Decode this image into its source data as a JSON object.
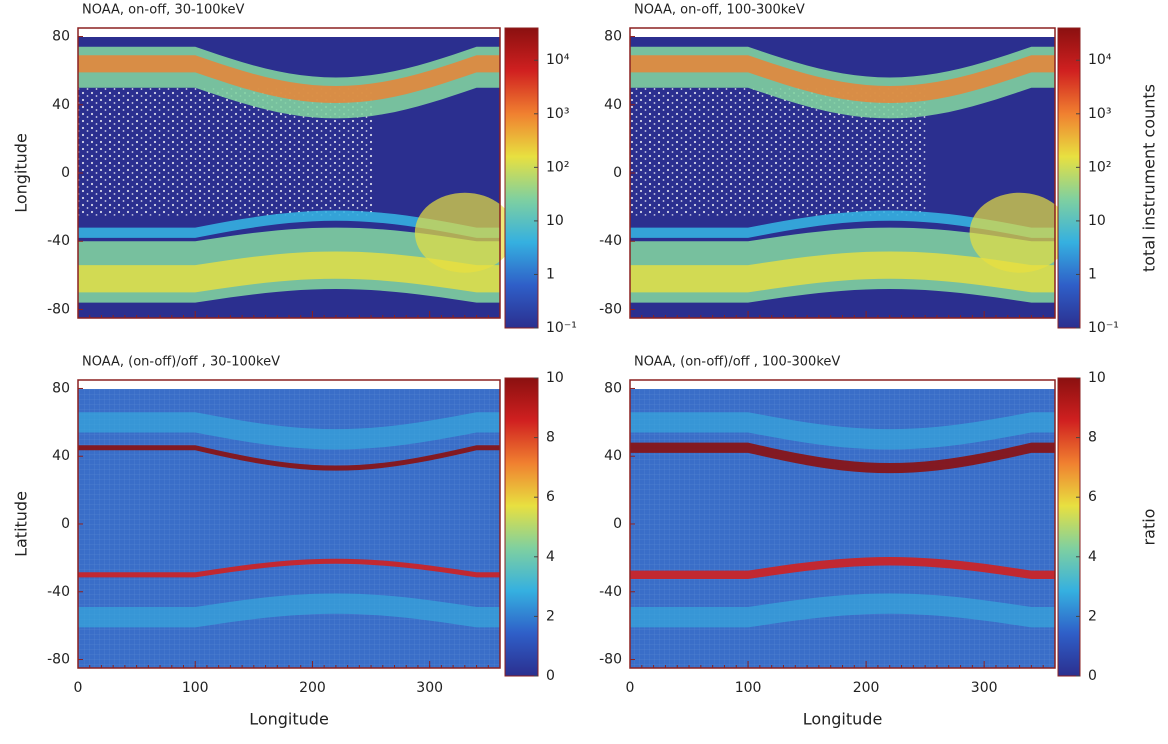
{
  "chart_data": [
    {
      "type": "heatmap",
      "title": "NOAA, on-off, 30-100keV",
      "ylabel": "Longitude",
      "xlim": [
        0,
        360
      ],
      "xticks": [
        0,
        100,
        200,
        300
      ],
      "ylim": [
        -85,
        85
      ],
      "yticks": [
        80,
        40,
        0,
        -40,
        -80
      ],
      "colormap": [
        "#2b2f8f",
        "#2f5fc8",
        "#35b0e0",
        "#7fd0a0",
        "#e8e040",
        "#f08030",
        "#d02020",
        "#8b1010"
      ],
      "colorbar": {
        "log": true,
        "lim": [
          0.1,
          40000
        ],
        "ticks": [
          {
            "value": 0.1,
            "label": "10⁻¹"
          },
          1,
          10,
          {
            "value": 100,
            "label": "10²"
          },
          {
            "value": 1000,
            "label": "10³"
          },
          {
            "value": 10000,
            "label": "10⁴"
          }
        ]
      }
    },
    {
      "type": "heatmap",
      "title": "NOAA, on-off, 100-300keV",
      "xlim": [
        0,
        360
      ],
      "xticks": [
        0,
        100,
        200,
        300
      ],
      "ylim": [
        -85,
        85
      ],
      "yticks": [
        80,
        40,
        0,
        -40,
        -80
      ],
      "colormap": [
        "#2b2f8f",
        "#2f5fc8",
        "#35b0e0",
        "#7fd0a0",
        "#e8e040",
        "#f08030",
        "#d02020",
        "#8b1010"
      ],
      "colorbar": {
        "log": true,
        "lim": [
          0.1,
          40000
        ],
        "label": "total instrument counts",
        "ticks": [
          {
            "value": 0.1,
            "label": "10⁻¹"
          },
          1,
          10,
          {
            "value": 100,
            "label": "10²"
          },
          {
            "value": 1000,
            "label": "10³"
          },
          {
            "value": 10000,
            "label": "10⁴"
          }
        ]
      }
    },
    {
      "type": "heatmap",
      "title": "NOAA, (on-off)/off , 30-100keV",
      "ylabel": "Latitude",
      "xlabel": "Longitude",
      "xlim": [
        0,
        360
      ],
      "xticks": [
        0,
        100,
        200,
        300
      ],
      "ylim": [
        -85,
        85
      ],
      "yticks": [
        80,
        40,
        0,
        -40,
        -80
      ],
      "colormap": [
        "#2b2f8f",
        "#2f5fc8",
        "#35b0e0",
        "#7fd0a0",
        "#e8e040",
        "#f08030",
        "#d02020",
        "#8b1010"
      ],
      "colorbar": {
        "log": false,
        "lim": [
          0,
          10
        ],
        "ticks": [
          10,
          8,
          6,
          4,
          2,
          0
        ]
      }
    },
    {
      "type": "heatmap",
      "title": "NOAA, (on-off)/off , 100-300keV",
      "xlabel": "Longitude",
      "xlim": [
        0,
        360
      ],
      "xticks": [
        0,
        100,
        200,
        300
      ],
      "ylim": [
        -85,
        85
      ],
      "yticks": [
        80,
        40,
        0,
        -40,
        -80
      ],
      "colormap": [
        "#2b2f8f",
        "#2f5fc8",
        "#35b0e0",
        "#7fd0a0",
        "#e8e040",
        "#f08030",
        "#d02020",
        "#8b1010"
      ],
      "colorbar": {
        "log": false,
        "lim": [
          0,
          10
        ],
        "label": "ratio",
        "ticks": [
          10,
          8,
          6,
          4,
          2,
          0
        ]
      }
    }
  ]
}
